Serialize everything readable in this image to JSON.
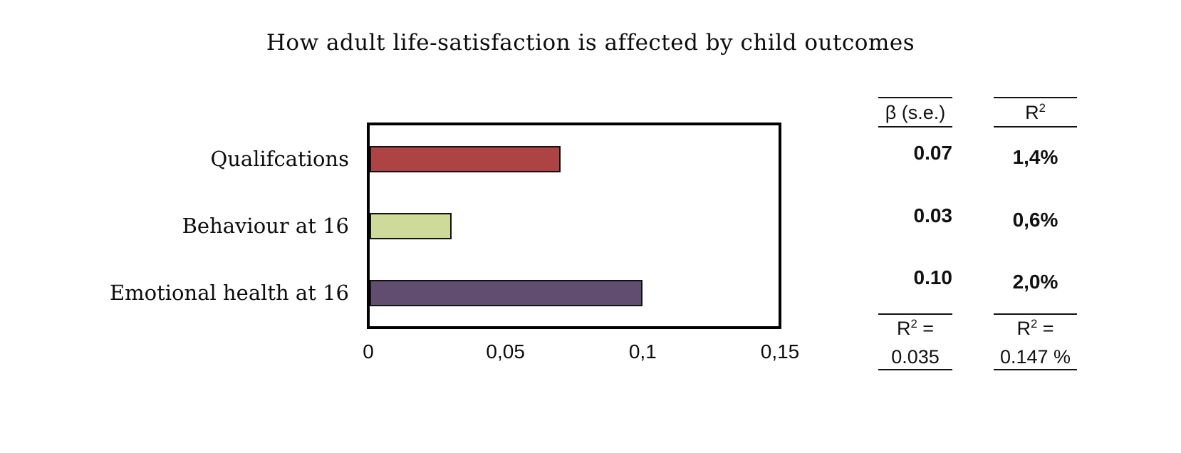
{
  "title": "How adult life-satisfaction is affected by child outcomes",
  "chart_data": {
    "type": "bar",
    "orientation": "horizontal",
    "title": "How adult life-satisfaction is affected by child outcomes",
    "categories": [
      "Qualifcations",
      "Behaviour at 16",
      "Emotional health at 16"
    ],
    "values": [
      0.07,
      0.03,
      0.1
    ],
    "bar_colors": [
      "#ad4343",
      "#cdda99",
      "#614d70"
    ],
    "xlabel": "",
    "ylabel": "",
    "xlim": [
      0,
      0.15
    ],
    "x_tick_labels": [
      "0",
      "0,05",
      "0,1",
      "0,15"
    ],
    "x_tick_values": [
      0,
      0.05,
      0.1,
      0.15
    ],
    "grid": false,
    "legend": false,
    "plot_border_color": "#000000",
    "bar_border_color": "#121212"
  },
  "table": {
    "beta_column": {
      "header": "β (s.e.)",
      "values": [
        "0.07",
        "0.03",
        "0.10"
      ],
      "footer": {
        "base": "R",
        "sup": "2",
        "eq": "=",
        "value": "0.035"
      }
    },
    "r2_column": {
      "header": {
        "base": "R",
        "sup": "2"
      },
      "values": [
        "1,4%",
        "0,6%",
        "2,0%"
      ],
      "footer": {
        "base": "R",
        "sup": "2",
        "eq": "=",
        "value": "0.147 %"
      }
    }
  }
}
